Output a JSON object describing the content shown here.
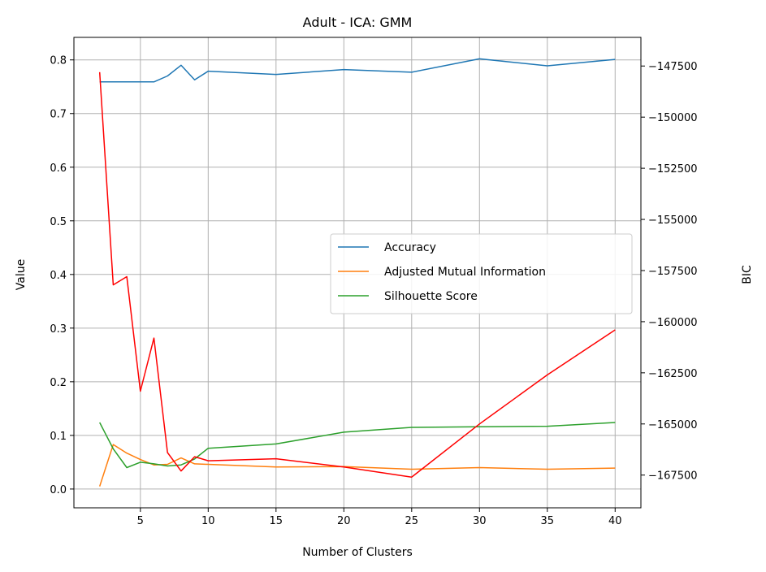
{
  "chart_data": {
    "type": "line",
    "title": "Adult - ICA: GMM",
    "xlabel": "Number of Clusters",
    "ylabel": "Value",
    "y2label": "BIC",
    "xlim": [
      0.1,
      41.9
    ],
    "ylim": [
      -0.035,
      0.842
    ],
    "y2lim": [
      -169100,
      -146100
    ],
    "x_ticks": [
      5,
      10,
      15,
      20,
      25,
      30,
      35,
      40
    ],
    "y_ticks": [
      0.0,
      0.1,
      0.2,
      0.3,
      0.4,
      0.5,
      0.6,
      0.7,
      0.8
    ],
    "y_tick_labels": [
      "0.0",
      "0.1",
      "0.2",
      "0.3",
      "0.4",
      "0.5",
      "0.6",
      "0.7",
      "0.8"
    ],
    "y2_ticks": [
      -167500,
      -165000,
      -162500,
      -160000,
      -157500,
      -155000,
      -152500,
      -150000,
      -147500
    ],
    "y2_tick_labels": [
      "−167500",
      "−165000",
      "−162500",
      "−160000",
      "−157500",
      "−155000",
      "−152500",
      "−150000",
      "−147500"
    ],
    "grid": true,
    "legend_position": "center-right",
    "series": [
      {
        "name": "Accuracy",
        "axis": "left",
        "color": "#1f77b4",
        "x": [
          2,
          3,
          4,
          5,
          6,
          7,
          8,
          9,
          10,
          15,
          20,
          25,
          30,
          35,
          40
        ],
        "values": [
          0.759,
          0.759,
          0.759,
          0.759,
          0.759,
          0.77,
          0.79,
          0.763,
          0.779,
          0.773,
          0.782,
          0.777,
          0.802,
          0.789,
          0.801
        ]
      },
      {
        "name": "Adjusted Mutual Information",
        "axis": "left",
        "color": "#ff7f0e",
        "x": [
          2,
          3,
          4,
          5,
          6,
          7,
          8,
          9,
          10,
          15,
          20,
          25,
          30,
          35,
          40
        ],
        "values": [
          0.005,
          0.083,
          0.067,
          0.055,
          0.045,
          0.046,
          0.058,
          0.047,
          0.046,
          0.041,
          0.042,
          0.037,
          0.04,
          0.037,
          0.039
        ]
      },
      {
        "name": "Silhouette Score",
        "axis": "left",
        "color": "#2ca02c",
        "x": [
          2,
          3,
          4,
          5,
          6,
          7,
          8,
          9,
          10,
          15,
          20,
          25,
          30,
          35,
          40
        ],
        "values": [
          0.124,
          0.075,
          0.04,
          0.05,
          0.047,
          0.043,
          0.045,
          0.056,
          0.076,
          0.084,
          0.106,
          0.115,
          0.116,
          0.117,
          0.124
        ]
      },
      {
        "axis": "right",
        "color": "#ff0000",
        "x": [
          2,
          3,
          4,
          5,
          6,
          7,
          8,
          9,
          10,
          15,
          20,
          25,
          30,
          35,
          40
        ],
        "values": [
          -147800,
          -158200,
          -157800,
          -163400,
          -160800,
          -166400,
          -167300,
          -166600,
          -166800,
          -166700,
          -167100,
          -167600,
          -165000,
          -162600,
          -160400
        ]
      }
    ]
  }
}
